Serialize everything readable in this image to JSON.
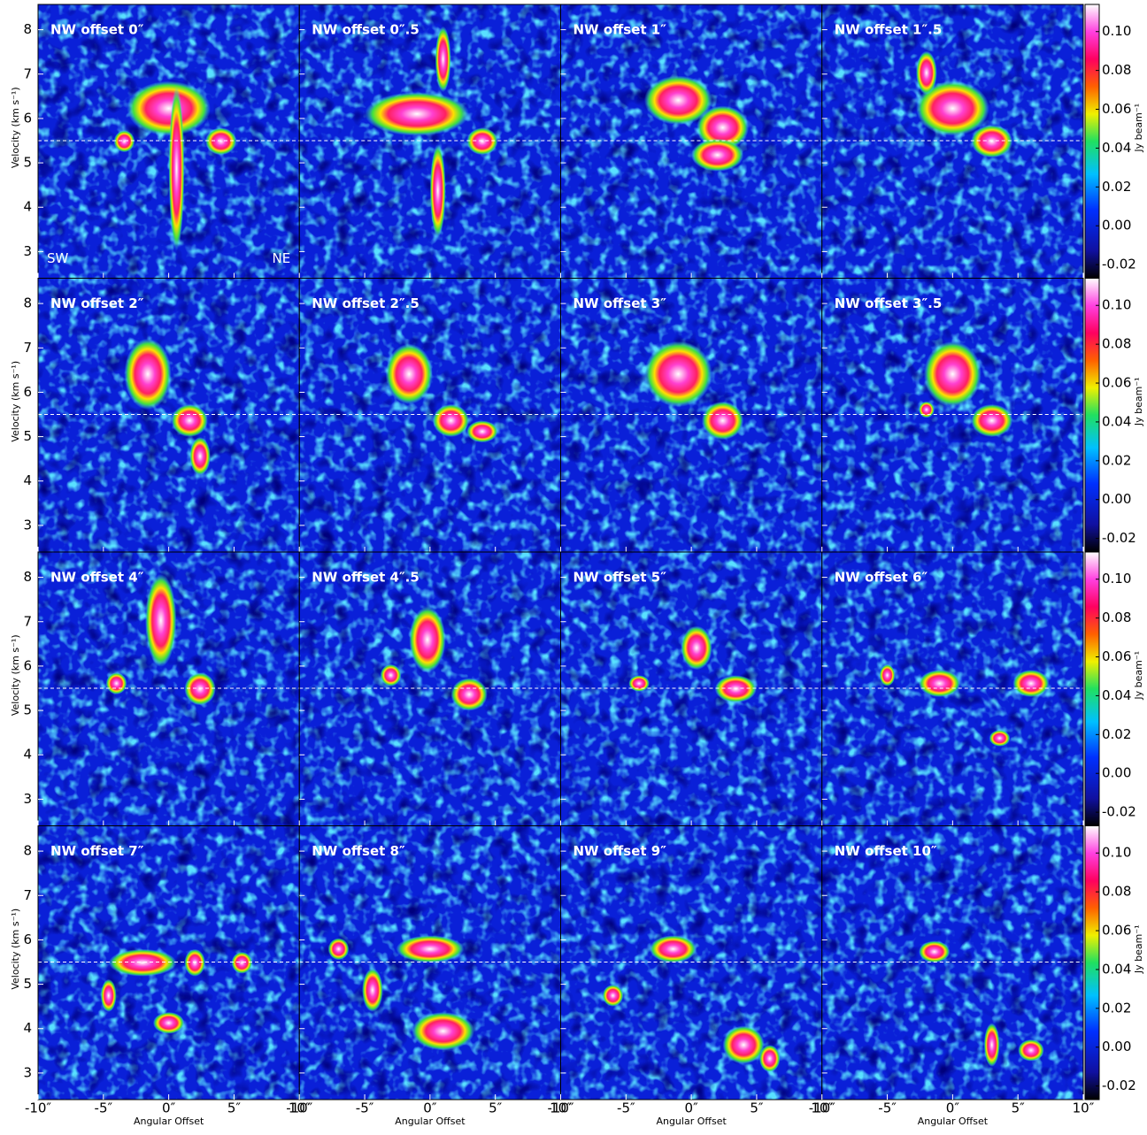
{
  "chart_data": {
    "type": "pv_grid",
    "panels": [
      "NW offset 0″",
      "NW offset 0″.5",
      "NW offset 1″",
      "NW offset 1″.5",
      "NW offset 2″",
      "NW offset 2″.5",
      "NW offset 3″",
      "NW offset 3″.5",
      "NW offset 4″",
      "NW offset 4″.5",
      "NW offset 5″",
      "NW offset 6″",
      "NW offset 7″",
      "NW offset 8″",
      "NW offset 9″",
      "NW offset 10″"
    ],
    "xlabel": "Angular Offset",
    "ylabel": "Velocity (km s⁻¹)",
    "xlim": [
      -10,
      10
    ],
    "xticks": [
      {
        "value": -10,
        "label": "-10″"
      },
      {
        "value": -5,
        "label": "-5″"
      },
      {
        "value": 0,
        "label": "0″"
      },
      {
        "value": 5,
        "label": "5″"
      },
      {
        "value": 10,
        "label": "10″"
      }
    ],
    "ylim": [
      2.4,
      8.57
    ],
    "yticks": [
      3,
      4,
      5,
      6,
      7,
      8
    ],
    "reference_velocity": 5.5,
    "annotations": [
      "SW",
      "NE"
    ],
    "colorbar": {
      "label": "Jy beam⁻¹",
      "lim": [
        -0.027,
        0.114
      ],
      "ticks": [
        -0.02,
        {
          "value": 0,
          "label": "0.00"
        },
        0.02,
        0.04,
        0.06,
        0.08,
        {
          "value": 0.1,
          "label": "0.10"
        }
      ]
    }
  }
}
